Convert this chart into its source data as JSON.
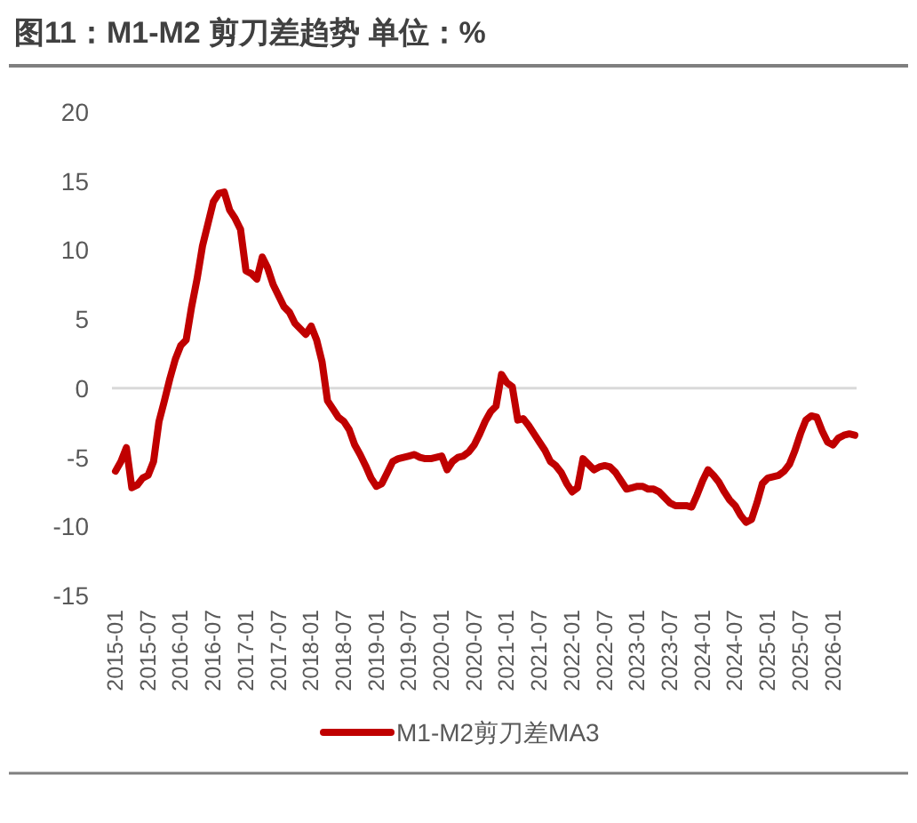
{
  "chart_data": {
    "type": "line",
    "title": "图11：M1-M2 剪刀差趋势 单位：%",
    "categories": [
      "2015-01",
      null,
      null,
      null,
      null,
      null,
      "2015-07",
      null,
      null,
      null,
      null,
      null,
      "2016-01",
      null,
      null,
      null,
      null,
      null,
      "2016-07",
      null,
      null,
      null,
      null,
      null,
      "2017-01",
      null,
      null,
      null,
      null,
      null,
      "2017-07",
      null,
      null,
      null,
      null,
      null,
      "2018-01",
      null,
      null,
      null,
      null,
      null,
      "2018-07",
      null,
      null,
      null,
      null,
      null,
      "2019-01",
      null,
      null,
      null,
      null,
      null,
      "2019-07",
      null,
      null,
      null,
      null,
      null,
      "2020-01",
      null,
      null,
      null,
      null,
      null,
      "2020-07",
      null,
      null,
      null,
      null,
      null,
      "2021-01",
      null,
      null,
      null,
      null,
      null,
      "2021-07",
      null,
      null,
      null,
      null,
      null,
      "2022-01",
      null,
      null,
      null,
      null,
      null,
      "2022-07",
      null,
      null,
      null,
      null,
      null,
      "2023-01",
      null,
      null,
      null,
      null,
      null,
      "2023-07",
      null,
      null,
      null,
      null,
      null,
      "2024-01",
      null,
      null,
      null,
      null,
      null,
      "2024-07",
      null,
      null,
      null,
      null,
      null,
      "2025-01",
      null,
      null,
      null,
      null,
      null,
      "2025-07",
      null,
      null,
      null,
      null,
      null,
      "2026-01",
      null,
      null,
      null,
      null
    ],
    "series": [
      {
        "name": "M1-M2剪刀差MA3",
        "color": "#c00000",
        "values": [
          -6,
          -5.3,
          -4.3,
          -7.2,
          -7.0,
          -6.5,
          -6.3,
          -5.3,
          -2.4,
          -0.9,
          0.7,
          2.1,
          3.1,
          3.5,
          5.9,
          7.9,
          10.3,
          11.9,
          13.5,
          14.1,
          14.2,
          12.9,
          12.3,
          11.5,
          8.5,
          8.3,
          7.9,
          9.5,
          8.7,
          7.5,
          6.7,
          5.9,
          5.5,
          4.7,
          4.3,
          3.9,
          4.5,
          3.5,
          1.9,
          -0.9,
          -1.5,
          -2.1,
          -2.4,
          -3.0,
          -4.1,
          -4.8,
          -5.6,
          -6.5,
          -7.1,
          -6.9,
          -6.1,
          -5.3,
          -5.1,
          -5.0,
          -4.9,
          -4.8,
          -5.0,
          -5.1,
          -5.1,
          -5.0,
          -4.9,
          -5.9,
          -5.3,
          -5.0,
          -4.9,
          -4.6,
          -4.1,
          -3.3,
          -2.4,
          -1.7,
          -1.3,
          1.0,
          0.4,
          0.1,
          -2.3,
          -2.2,
          -2.7,
          -3.3,
          -3.9,
          -4.5,
          -5.3,
          -5.6,
          -6.1,
          -6.9,
          -7.5,
          -7.2,
          -5.1,
          -5.5,
          -5.9,
          -5.7,
          -5.6,
          -5.7,
          -6.1,
          -6.7,
          -7.3,
          -7.2,
          -7.1,
          -7.1,
          -7.3,
          -7.3,
          -7.5,
          -7.9,
          -8.3,
          -8.5,
          -8.5,
          -8.5,
          -8.6,
          -7.7,
          -6.7,
          -5.9,
          -6.3,
          -6.8,
          -7.5,
          -8.1,
          -8.5,
          -9.2,
          -9.7,
          -9.5,
          -8.3,
          -6.9,
          -6.5,
          -6.4,
          -6.3,
          -6.0,
          -5.5,
          -4.5,
          -3.3,
          -2.3,
          -2.0,
          -2.1,
          -3.1,
          -3.9,
          -4.1,
          -3.6,
          -3.4,
          -3.3,
          -3.4
        ]
      }
    ],
    "ylim": [
      -15,
      20
    ],
    "yticks": [
      -15,
      -10,
      -5,
      0,
      5,
      10,
      15,
      20
    ],
    "legend": "bottom",
    "line_style": "solid"
  }
}
